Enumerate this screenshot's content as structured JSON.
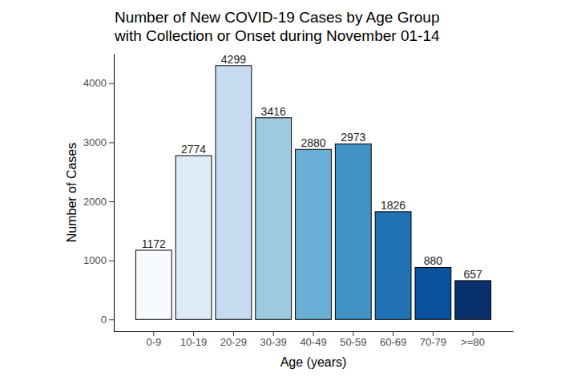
{
  "chart_data": {
    "type": "bar",
    "title": "Number of New COVID-19 Cases by Age Group\nwith Collection or Onset during November 01-14",
    "x_label": "Age (years)",
    "y_label": "Number of Cases",
    "categories": [
      "0-9",
      "10-19",
      "20-29",
      "30-39",
      "40-49",
      "50-59",
      "60-69",
      "70-79",
      ">=80"
    ],
    "values": [
      1172,
      2774,
      4299,
      3416,
      2880,
      2973,
      1826,
      880,
      657
    ],
    "colors": [
      "#f7fbff",
      "#deebf7",
      "#c6dbef",
      "#9ecae1",
      "#6baed6",
      "#4292c6",
      "#2171b5",
      "#08519c",
      "#08306b"
    ],
    "ylim": [
      -200,
      4500
    ],
    "yticks": [
      0,
      1000,
      2000,
      3000,
      4000
    ],
    "grid": false,
    "data_labels": true
  }
}
